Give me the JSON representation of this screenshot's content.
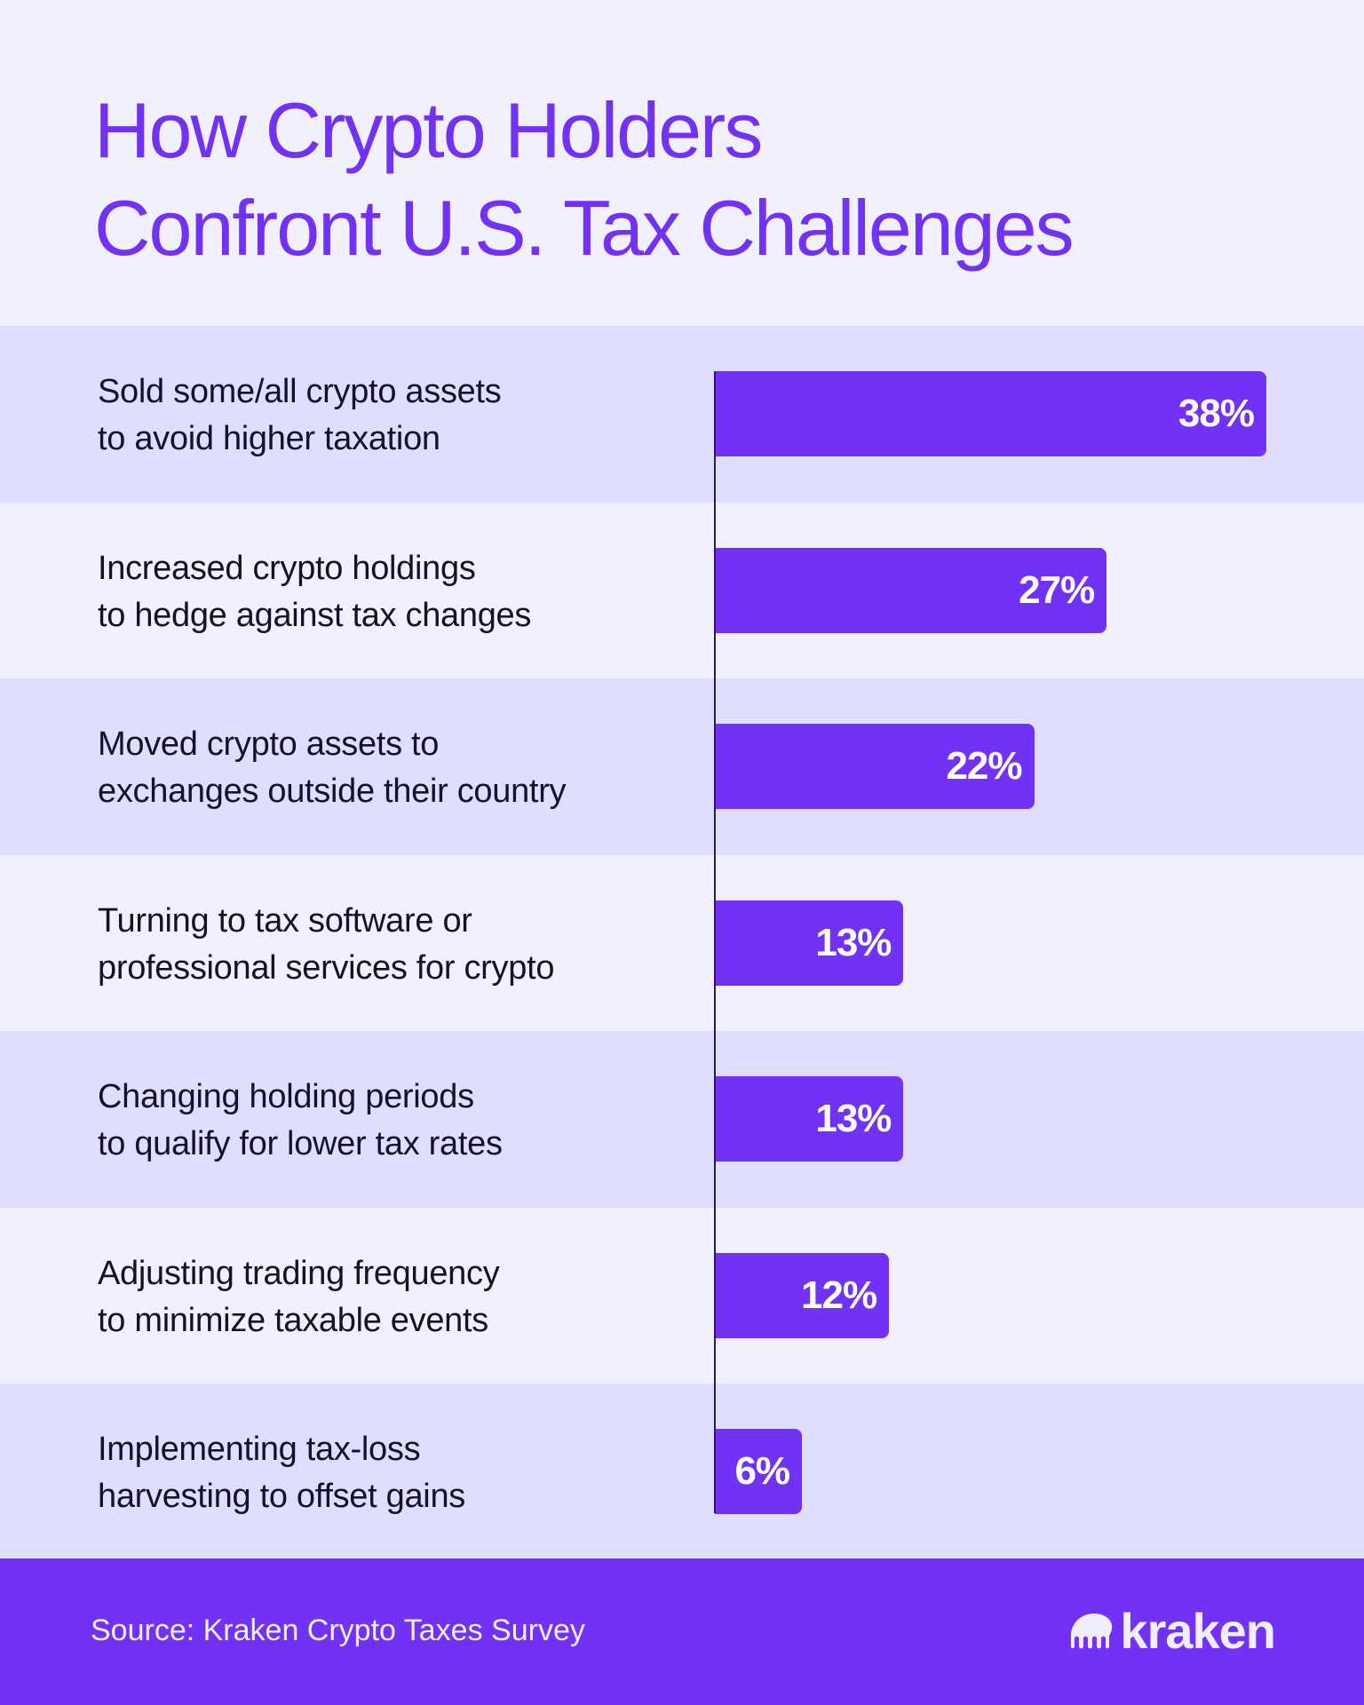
{
  "header": {
    "title_lines": [
      "How Crypto Holders",
      "Confront U.S. Tax Challenges"
    ]
  },
  "chart_data": {
    "type": "bar",
    "orientation": "horizontal",
    "title": "How Crypto Holders Confront U.S. Tax Challenges",
    "categories": [
      [
        "Sold some/all crypto assets",
        "to avoid higher taxation"
      ],
      [
        "Increased crypto holdings",
        "to hedge against tax changes"
      ],
      [
        "Moved crypto assets to",
        "exchanges outside their country"
      ],
      [
        "Turning to tax software or",
        "professional services for crypto"
      ],
      [
        "Changing holding periods",
        "to qualify for lower tax rates"
      ],
      [
        "Adjusting trading frequency",
        "to minimize taxable events"
      ],
      [
        "Implementing tax-loss",
        "harvesting to offset gains"
      ]
    ],
    "values": [
      38,
      27,
      22,
      13,
      13,
      12,
      6
    ],
    "value_labels": [
      "38%",
      "27%",
      "22%",
      "13%",
      "13%",
      "12%",
      "6%"
    ],
    "unit": "%",
    "xlim": [
      0,
      40
    ],
    "grid": false,
    "colors": {
      "bar": "#7132f5",
      "row_band": "#e0defe",
      "background": "#f0f0fe",
      "axis": "#2a1a5e"
    }
  },
  "footer": {
    "source": "Source: Kraken Crypto Taxes Survey",
    "logo_text": "kraken",
    "background": "#7132f5"
  }
}
